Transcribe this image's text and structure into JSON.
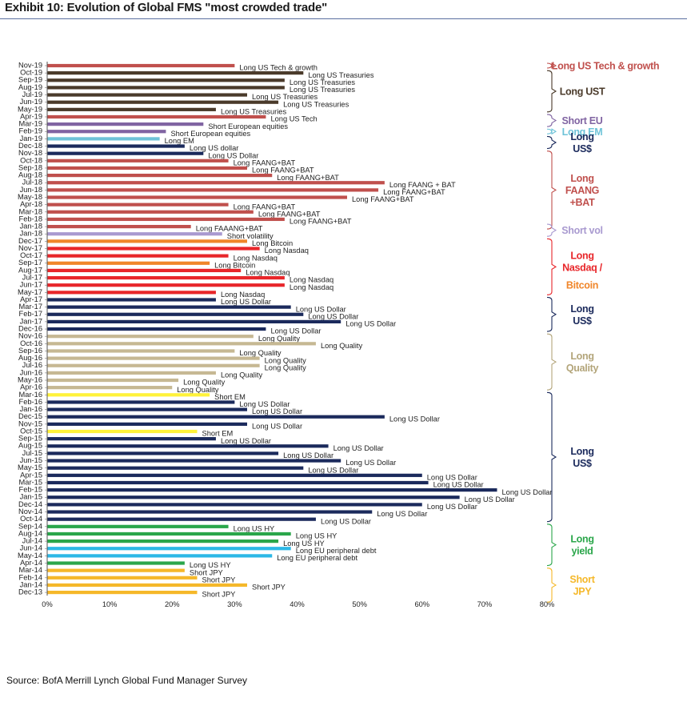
{
  "header": {
    "title": "Exhibit 10: Evolution of Global FMS \"most crowded trade\""
  },
  "footer": {
    "source": "Source: BofA Merrill Lynch Global Fund Manager Survey"
  },
  "chart_data": {
    "type": "bar",
    "orientation": "horizontal",
    "title": "Exhibit 10: Evolution of Global FMS \"most crowded trade\"",
    "xlim": [
      0,
      80
    ],
    "xticks": [
      "0%",
      "10%",
      "20%",
      "30%",
      "40%",
      "50%",
      "60%",
      "70%",
      "80%"
    ],
    "grid": false,
    "colors": {
      "dark": "#4a3a2a",
      "red": "#c0504d",
      "purple": "#8064a2",
      "lightblue": "#6ec3d8",
      "navy": "#1b2a5c",
      "lavender": "#a99ad0",
      "orange": "#f0862a",
      "brightred": "#e8262a",
      "tan": "#c6b893",
      "yellow": "#fff23a",
      "green": "#2aa64a",
      "cyan": "#2cb8e6",
      "gold": "#f5b82a"
    },
    "bars": [
      {
        "month": "Nov-19",
        "value": 30,
        "label": "Long US Tech & growth",
        "color": "red"
      },
      {
        "month": "Oct-19",
        "value": 41,
        "label": "Long US Treasuries",
        "color": "dark"
      },
      {
        "month": "Sep-19",
        "value": 38,
        "label": "Long US Treasuries",
        "color": "dark"
      },
      {
        "month": "Aug-19",
        "value": 38,
        "label": "Long US Treasuries",
        "color": "dark"
      },
      {
        "month": "Jul-19",
        "value": 32,
        "label": "Long US Treasuries",
        "color": "dark"
      },
      {
        "month": "Jun-19",
        "value": 37,
        "label": "Long US Treasuries",
        "color": "dark"
      },
      {
        "month": "May-19",
        "value": 27,
        "label": "Long US Treasuries",
        "color": "dark"
      },
      {
        "month": "Apr-19",
        "value": 35,
        "label": "Long US Tech",
        "color": "red"
      },
      {
        "month": "Mar-19",
        "value": 25,
        "label": "Short European  equities",
        "color": "purple"
      },
      {
        "month": "Feb-19",
        "value": 19,
        "label": "Short European  equities",
        "color": "purple"
      },
      {
        "month": "Jan-19",
        "value": 18,
        "label": "Long  EM",
        "color": "lightblue"
      },
      {
        "month": "Dec-18",
        "value": 22,
        "label": "Long  US dollar",
        "color": "navy"
      },
      {
        "month": "Nov-18",
        "value": 25,
        "label": "Long US Dollar",
        "color": "navy"
      },
      {
        "month": "Oct-18",
        "value": 29,
        "label": "Long FAANG+BAT",
        "color": "red"
      },
      {
        "month": "Sep-18",
        "value": 32,
        "label": "Long FAANG+BAT",
        "color": "red"
      },
      {
        "month": "Aug-18",
        "value": 36,
        "label": "Long  FAANG+BAT",
        "color": "red"
      },
      {
        "month": "Jul-18",
        "value": 54,
        "label": "Long  FAANG + BAT",
        "color": "red"
      },
      {
        "month": "Jun-18",
        "value": 53,
        "label": "Long  FAANG+BAT",
        "color": "red"
      },
      {
        "month": "May-18",
        "value": 48,
        "label": "Long  FAANG+BAT",
        "color": "red"
      },
      {
        "month": "Apr-18",
        "value": 29,
        "label": "Long FAANG+BAT",
        "color": "red"
      },
      {
        "month": "Mar-18",
        "value": 33,
        "label": "Long  FAANG+BAT",
        "color": "red"
      },
      {
        "month": "Feb-18",
        "value": 38,
        "label": "Long  FAANG+BAT",
        "color": "red"
      },
      {
        "month": "Jan-18",
        "value": 23,
        "label": "Long  FAAANG+BAT",
        "color": "red"
      },
      {
        "month": "Jan-18",
        "value": 28,
        "label": "Short volatility",
        "color": "lavender"
      },
      {
        "month": "Dec-17",
        "value": 32,
        "label": "Long  Bitcoin",
        "color": "orange"
      },
      {
        "month": "Nov-17",
        "value": 34,
        "label": "Long  Nasdaq",
        "color": "brightred"
      },
      {
        "month": "Oct-17",
        "value": 29,
        "label": "Long  Nasdaq",
        "color": "brightred"
      },
      {
        "month": "Sep-17",
        "value": 26,
        "label": "Long  Bitcoin",
        "color": "orange"
      },
      {
        "month": "Aug-17",
        "value": 31,
        "label": "Long  Nasdaq",
        "color": "brightred"
      },
      {
        "month": "Jul-17",
        "value": 38,
        "label": "Long  Nasdaq",
        "color": "brightred"
      },
      {
        "month": "Jun-17",
        "value": 38,
        "label": "Long  Nasdaq",
        "color": "brightred"
      },
      {
        "month": "May-17",
        "value": 27,
        "label": "Long  Nasdaq",
        "color": "brightred"
      },
      {
        "month": "Apr-17",
        "value": 27,
        "label": "Long US Dollar",
        "color": "navy"
      },
      {
        "month": "Mar-17",
        "value": 39,
        "label": "Long  US Dollar",
        "color": "navy"
      },
      {
        "month": "Feb-17",
        "value": 41,
        "label": "Long US Dollar",
        "color": "navy"
      },
      {
        "month": "Jan-17",
        "value": 47,
        "label": "Long  US Dollar",
        "color": "navy"
      },
      {
        "month": "Dec-16",
        "value": 35,
        "label": "Long  US Dollar",
        "color": "navy"
      },
      {
        "month": "Nov-16",
        "value": 33,
        "label": "Long  Quality",
        "color": "tan"
      },
      {
        "month": "Oct-16",
        "value": 43,
        "label": "Long  Quality",
        "color": "tan"
      },
      {
        "month": "Sep-16",
        "value": 30,
        "label": "Long  Quality",
        "color": "tan"
      },
      {
        "month": "Aug-16",
        "value": 34,
        "label": "Long  Quality",
        "color": "tan"
      },
      {
        "month": "Jul-16",
        "value": 34,
        "label": "Long  Quality",
        "color": "tan"
      },
      {
        "month": "Jun-16",
        "value": 27,
        "label": "Long  Quality",
        "color": "tan"
      },
      {
        "month": "May-16",
        "value": 21,
        "label": "Long  Quality",
        "color": "tan"
      },
      {
        "month": "Apr-16",
        "value": 20,
        "label": "Long  Quality",
        "color": "tan"
      },
      {
        "month": "Mar-16",
        "value": 26,
        "label": "Short EM",
        "color": "yellow"
      },
      {
        "month": "Feb-16",
        "value": 30,
        "label": "Long  US Dollar",
        "color": "navy"
      },
      {
        "month": "Jan-16",
        "value": 32,
        "label": "Long  US Dollar",
        "color": "navy"
      },
      {
        "month": "Dec-15",
        "value": 54,
        "label": "Long  US Dollar",
        "color": "navy"
      },
      {
        "month": "Nov-15",
        "value": 32,
        "label": "Long  US Dollar",
        "color": "navy"
      },
      {
        "month": "Oct-15",
        "value": 24,
        "label": "Short EM",
        "color": "yellow"
      },
      {
        "month": "Sep-15",
        "value": 27,
        "label": "Long  US Dollar",
        "color": "navy"
      },
      {
        "month": "Aug-15",
        "value": 45,
        "label": "Long  US Dollar",
        "color": "navy"
      },
      {
        "month": "Jul-15",
        "value": 37,
        "label": "Long  US Dollar",
        "color": "navy"
      },
      {
        "month": "Jun-15",
        "value": 47,
        "label": "Long  US Dollar",
        "color": "navy"
      },
      {
        "month": "May-15",
        "value": 41,
        "label": "Long  US Dollar",
        "color": "navy"
      },
      {
        "month": "Apr-15",
        "value": 60,
        "label": "Long  US Dollar",
        "color": "navy"
      },
      {
        "month": "Mar-15",
        "value": 61,
        "label": "Long  US Dollar",
        "color": "navy"
      },
      {
        "month": "Feb-15",
        "value": 72,
        "label": "Long  US Dollar",
        "color": "navy"
      },
      {
        "month": "Jan-15",
        "value": 66,
        "label": "Long  US Dollar",
        "color": "navy"
      },
      {
        "month": "Dec-14",
        "value": 60,
        "label": "Long  US Dollar",
        "color": "navy"
      },
      {
        "month": "Nov-14",
        "value": 52,
        "label": "Long  US Dollar",
        "color": "navy"
      },
      {
        "month": "Oct-14",
        "value": 43,
        "label": "Long  US Dollar",
        "color": "navy"
      },
      {
        "month": "Sep-14",
        "value": 29,
        "label": "Long  US HY",
        "color": "green"
      },
      {
        "month": "Aug-14",
        "value": 39,
        "label": "Long  US HY",
        "color": "green"
      },
      {
        "month": "Jul-14",
        "value": 37,
        "label": "Long  US HY",
        "color": "green"
      },
      {
        "month": "Jun-14",
        "value": 39,
        "label": "Long  EU peripheral  debt",
        "color": "cyan"
      },
      {
        "month": "May-14",
        "value": 36,
        "label": "Long  EU peripheral debt",
        "color": "cyan"
      },
      {
        "month": "Apr-14",
        "value": 22,
        "label": "Long  US HY",
        "color": "green"
      },
      {
        "month": "Mar-14",
        "value": 22,
        "label": "Short JPY",
        "color": "gold"
      },
      {
        "month": "Feb-14",
        "value": 24,
        "label": "Short JPY",
        "color": "gold"
      },
      {
        "month": "Jan-14",
        "value": 32,
        "label": "Short JPY",
        "color": "gold"
      },
      {
        "month": "Dec-13",
        "value": 24,
        "label": "Short JPY",
        "color": "gold"
      }
    ],
    "groups": [
      {
        "lines": [
          "Long US Tech & growth"
        ],
        "color": "#c0504d",
        "from": 0,
        "to": 0
      },
      {
        "lines": [
          "Long UST"
        ],
        "color": "#4a3a2a",
        "from": 1,
        "to": 6
      },
      {
        "lines": [
          "Short EU"
        ],
        "color": "#8064a2",
        "from": 7,
        "to": 8
      },
      {
        "lines": [
          "Long EM"
        ],
        "color": "#6ec3d8",
        "from": 9,
        "to": 9
      },
      {
        "lines": [
          "Long",
          "US$"
        ],
        "color": "#1b2a5c",
        "from": 10,
        "to": 11
      },
      {
        "lines": [
          "Long",
          "FAANG",
          "+BAT"
        ],
        "color": "#c0504d",
        "from": 12,
        "to": 22
      },
      {
        "lines": [
          "Short vol"
        ],
        "color": "#a99ad0",
        "from": 22,
        "to": 23
      },
      {
        "lines": [
          "Long",
          "Nasdaq /"
        ],
        "color": "#e8262a",
        "from": 24,
        "to": 31
      },
      {
        "lines": [
          "Bitcoin"
        ],
        "color": "#f0862a",
        "from": -1,
        "to": -1
      },
      {
        "lines": [
          "Long",
          "US$"
        ],
        "color": "#1b2a5c",
        "from": 32,
        "to": 36
      },
      {
        "lines": [
          "Long",
          "Quality"
        ],
        "color": "#b3a57a",
        "from": 37,
        "to": 44
      },
      {
        "lines": [
          "Long",
          "US$"
        ],
        "color": "#1b2a5c",
        "from": 45,
        "to": 62
      },
      {
        "lines": [
          "Long",
          "yield"
        ],
        "color": "#2aa64a",
        "from": 63,
        "to": 68
      },
      {
        "lines": [
          "Short",
          "JPY"
        ],
        "color": "#f5b82a",
        "from": 69,
        "to": 73
      }
    ]
  }
}
